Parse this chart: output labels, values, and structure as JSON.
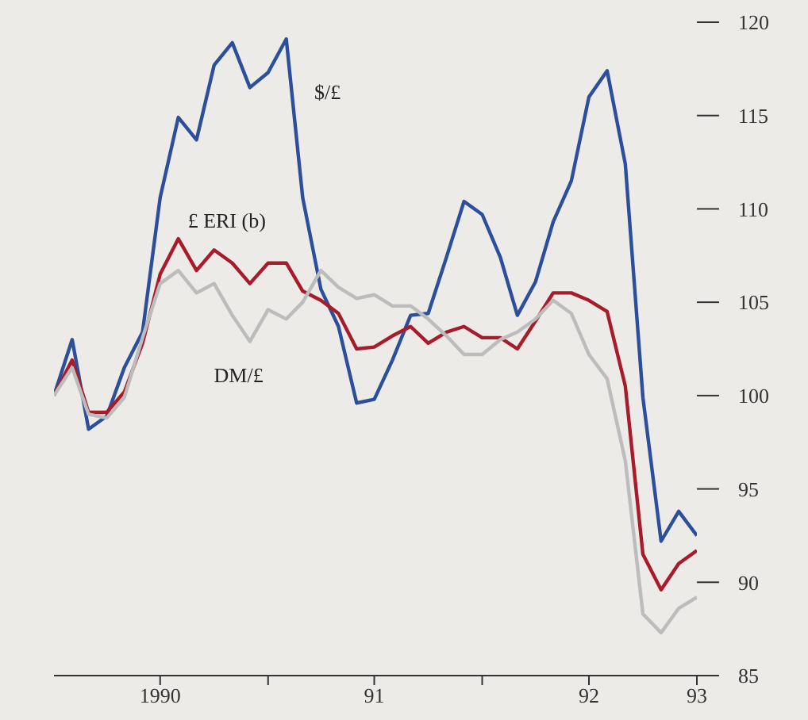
{
  "chart_data": {
    "type": "line",
    "x": [
      "1990-01",
      "1990-02",
      "1990-03",
      "1990-04",
      "1990-05",
      "1990-06",
      "1990-07",
      "1990-08",
      "1990-09",
      "1990-10",
      "1990-11",
      "1990-12",
      "1991-01",
      "1991-02",
      "1991-03",
      "1991-04",
      "1991-05",
      "1991-06",
      "1991-07",
      "1991-08",
      "1991-09",
      "1991-10",
      "1991-11",
      "1991-12",
      "1992-01",
      "1992-02",
      "1992-03",
      "1992-04",
      "1992-05",
      "1992-06",
      "1992-07",
      "1992-08",
      "1992-09",
      "1992-10",
      "1992-11",
      "1992-12",
      "1993-01"
    ],
    "series": [
      {
        "name": "$/£",
        "color": "#2b4f9a",
        "values": [
          100,
          103,
          98.2,
          98.9,
          101.5,
          103.4,
          110.6,
          114.9,
          113.7,
          117.7,
          118.9,
          116.5,
          117.3,
          119.1,
          110.6,
          105.7,
          103.7,
          99.6,
          99.8,
          101.9,
          104.3,
          104.4,
          107.4,
          110.4,
          109.7,
          107.4,
          104.3,
          106.1,
          109.3,
          111.5,
          116,
          117.4,
          112.4,
          99.9,
          92.2,
          93.8,
          92.5
        ]
      },
      {
        "name": "£ ERI (b)",
        "color": "#a81c2a",
        "values": [
          100,
          101.9,
          99.1,
          99.1,
          100.2,
          102.8,
          106.5,
          108.4,
          106.7,
          107.8,
          107.1,
          106,
          107.1,
          107.1,
          105.6,
          105.1,
          104.4,
          102.5,
          102.6,
          103.2,
          103.7,
          102.8,
          103.4,
          103.7,
          103.1,
          103.1,
          102.5,
          104,
          105.5,
          105.5,
          105.1,
          104.5,
          100.5,
          91.5,
          89.6,
          91,
          91.7
        ]
      },
      {
        "name": "DM/£",
        "color": "#bcbcbc",
        "values": [
          100,
          101.5,
          99,
          98.8,
          99.9,
          103.1,
          106,
          106.7,
          105.5,
          106,
          104.3,
          102.9,
          104.6,
          104.1,
          105,
          106.7,
          105.8,
          105.2,
          105.4,
          104.8,
          104.8,
          104.1,
          103.2,
          102.2,
          102.2,
          103,
          103.4,
          104.1,
          105.1,
          104.4,
          102.2,
          100.9,
          96.5,
          88.3,
          87.3,
          88.6,
          89.2
        ]
      }
    ],
    "xlim": [
      "1990-01",
      "1993-01"
    ],
    "xticks": [
      {
        "value": "1990-07",
        "label": "1990"
      },
      {
        "value": "1991-01",
        "label": null
      },
      {
        "value": "1991-07",
        "label": "91"
      },
      {
        "value": "1992-01",
        "label": null
      },
      {
        "value": "1992-07",
        "label": "92"
      },
      {
        "value": "1993-01",
        "label": "93"
      }
    ],
    "ylim": [
      85,
      120
    ],
    "yticks": [
      85,
      90,
      95,
      100,
      105,
      110,
      115,
      120
    ],
    "grid": false,
    "legend": false,
    "marker": "none",
    "line_style": "solid"
  }
}
